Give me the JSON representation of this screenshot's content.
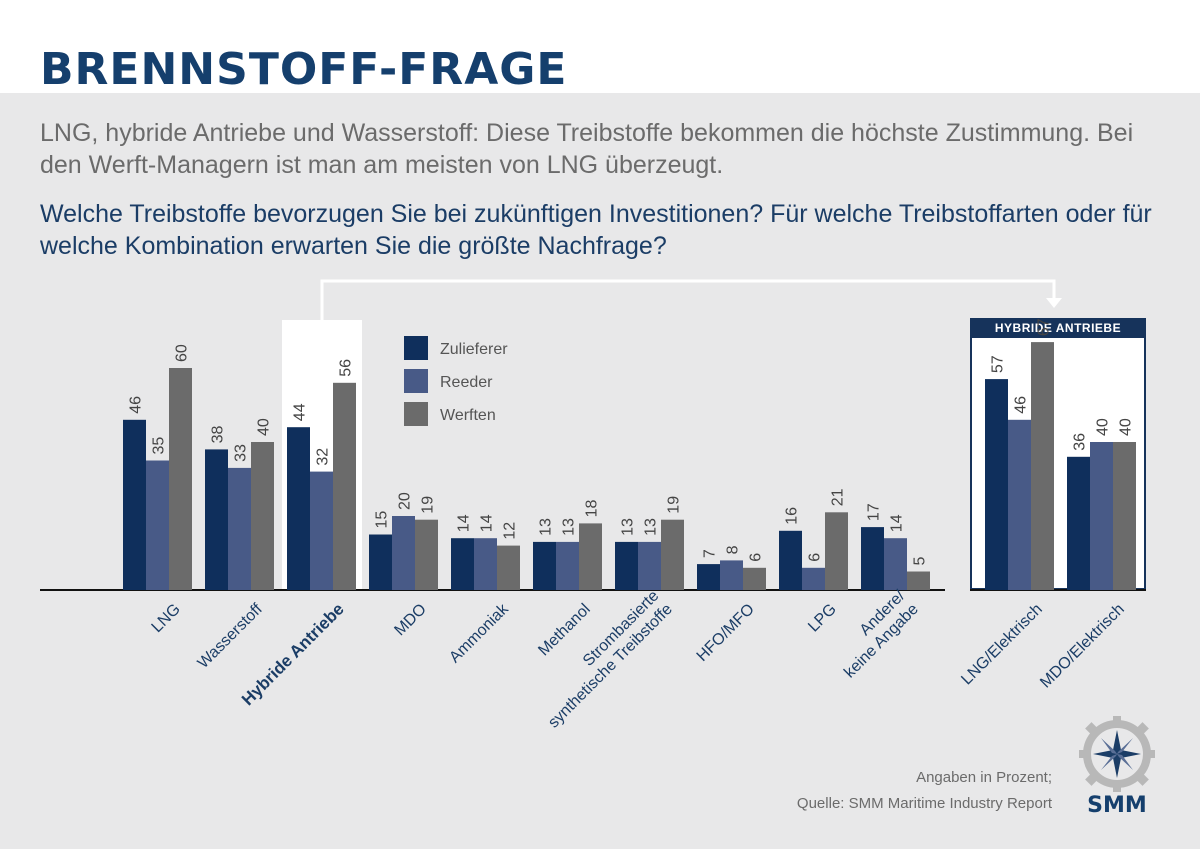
{
  "header": {
    "title": "BRENNSTOFF-FRAGE",
    "subtitle": "LNG, hybride Antriebe und Wasserstoff: Diese Treibstoffe bekommen die höchste Zustimmung. Bei den Werft-Managern ist man am meisten von LNG überzeugt.",
    "question": "Welche Treibstoffe bevorzugen Sie bei zukünftigen Investitionen? Für welche Treibstoffarten oder für welche Kombination erwarten Sie die größte Nachfrage?"
  },
  "inset": {
    "title": "HYBRIDE ANTRIEBE"
  },
  "footnote": {
    "line1": "Angaben in Prozent;",
    "line2": "Quelle: SMM Maritime Industry Report"
  },
  "logo": {
    "text": "SMM"
  },
  "colors": {
    "zulieferer": "#0f2f5c",
    "reeder": "#485a87",
    "werften": "#6b6b6b",
    "title": "#153f6d",
    "text_blue": "#1b3d66"
  },
  "chart_data": [
    {
      "type": "bar",
      "title": "Welche Treibstoffe bevorzugen Sie bei zukünftigen Investitionen?",
      "ylabel": "Angaben in Prozent",
      "ylim": [
        0,
        70
      ],
      "legend_position": "top-left",
      "categories": [
        [
          "LNG"
        ],
        [
          "Wasserstoff"
        ],
        [
          "Hybride Antriebe"
        ],
        [
          "MDO"
        ],
        [
          "Ammoniak"
        ],
        [
          "Methanol"
        ],
        [
          "Strombasierte",
          "synthetische Treibstoffe"
        ],
        [
          "HFO/MFO"
        ],
        [
          "LPG"
        ],
        [
          "Andere/",
          "keine Angabe"
        ]
      ],
      "highlight": "Hybride Antriebe",
      "series": [
        {
          "name": "Zulieferer",
          "color": "#0f2f5c",
          "values": [
            46,
            38,
            44,
            15,
            14,
            13,
            13,
            7,
            16,
            17
          ]
        },
        {
          "name": "Reeder",
          "color": "#485a87",
          "values": [
            35,
            33,
            32,
            20,
            14,
            13,
            13,
            8,
            6,
            14
          ]
        },
        {
          "name": "Werften",
          "color": "#6b6b6b",
          "values": [
            60,
            40,
            56,
            19,
            12,
            18,
            19,
            6,
            21,
            5
          ]
        }
      ]
    },
    {
      "type": "bar",
      "title": "HYBRIDE ANTRIEBE",
      "ylim": [
        0,
        70
      ],
      "categories": [
        [
          "LNG/Elektrisch"
        ],
        [
          "MDO/Elektrisch"
        ]
      ],
      "series": [
        {
          "name": "Zulieferer",
          "color": "#0f2f5c",
          "values": [
            57,
            36
          ]
        },
        {
          "name": "Reeder",
          "color": "#485a87",
          "values": [
            46,
            40
          ]
        },
        {
          "name": "Werften",
          "color": "#6b6b6b",
          "values": [
            67,
            40
          ]
        }
      ]
    }
  ]
}
